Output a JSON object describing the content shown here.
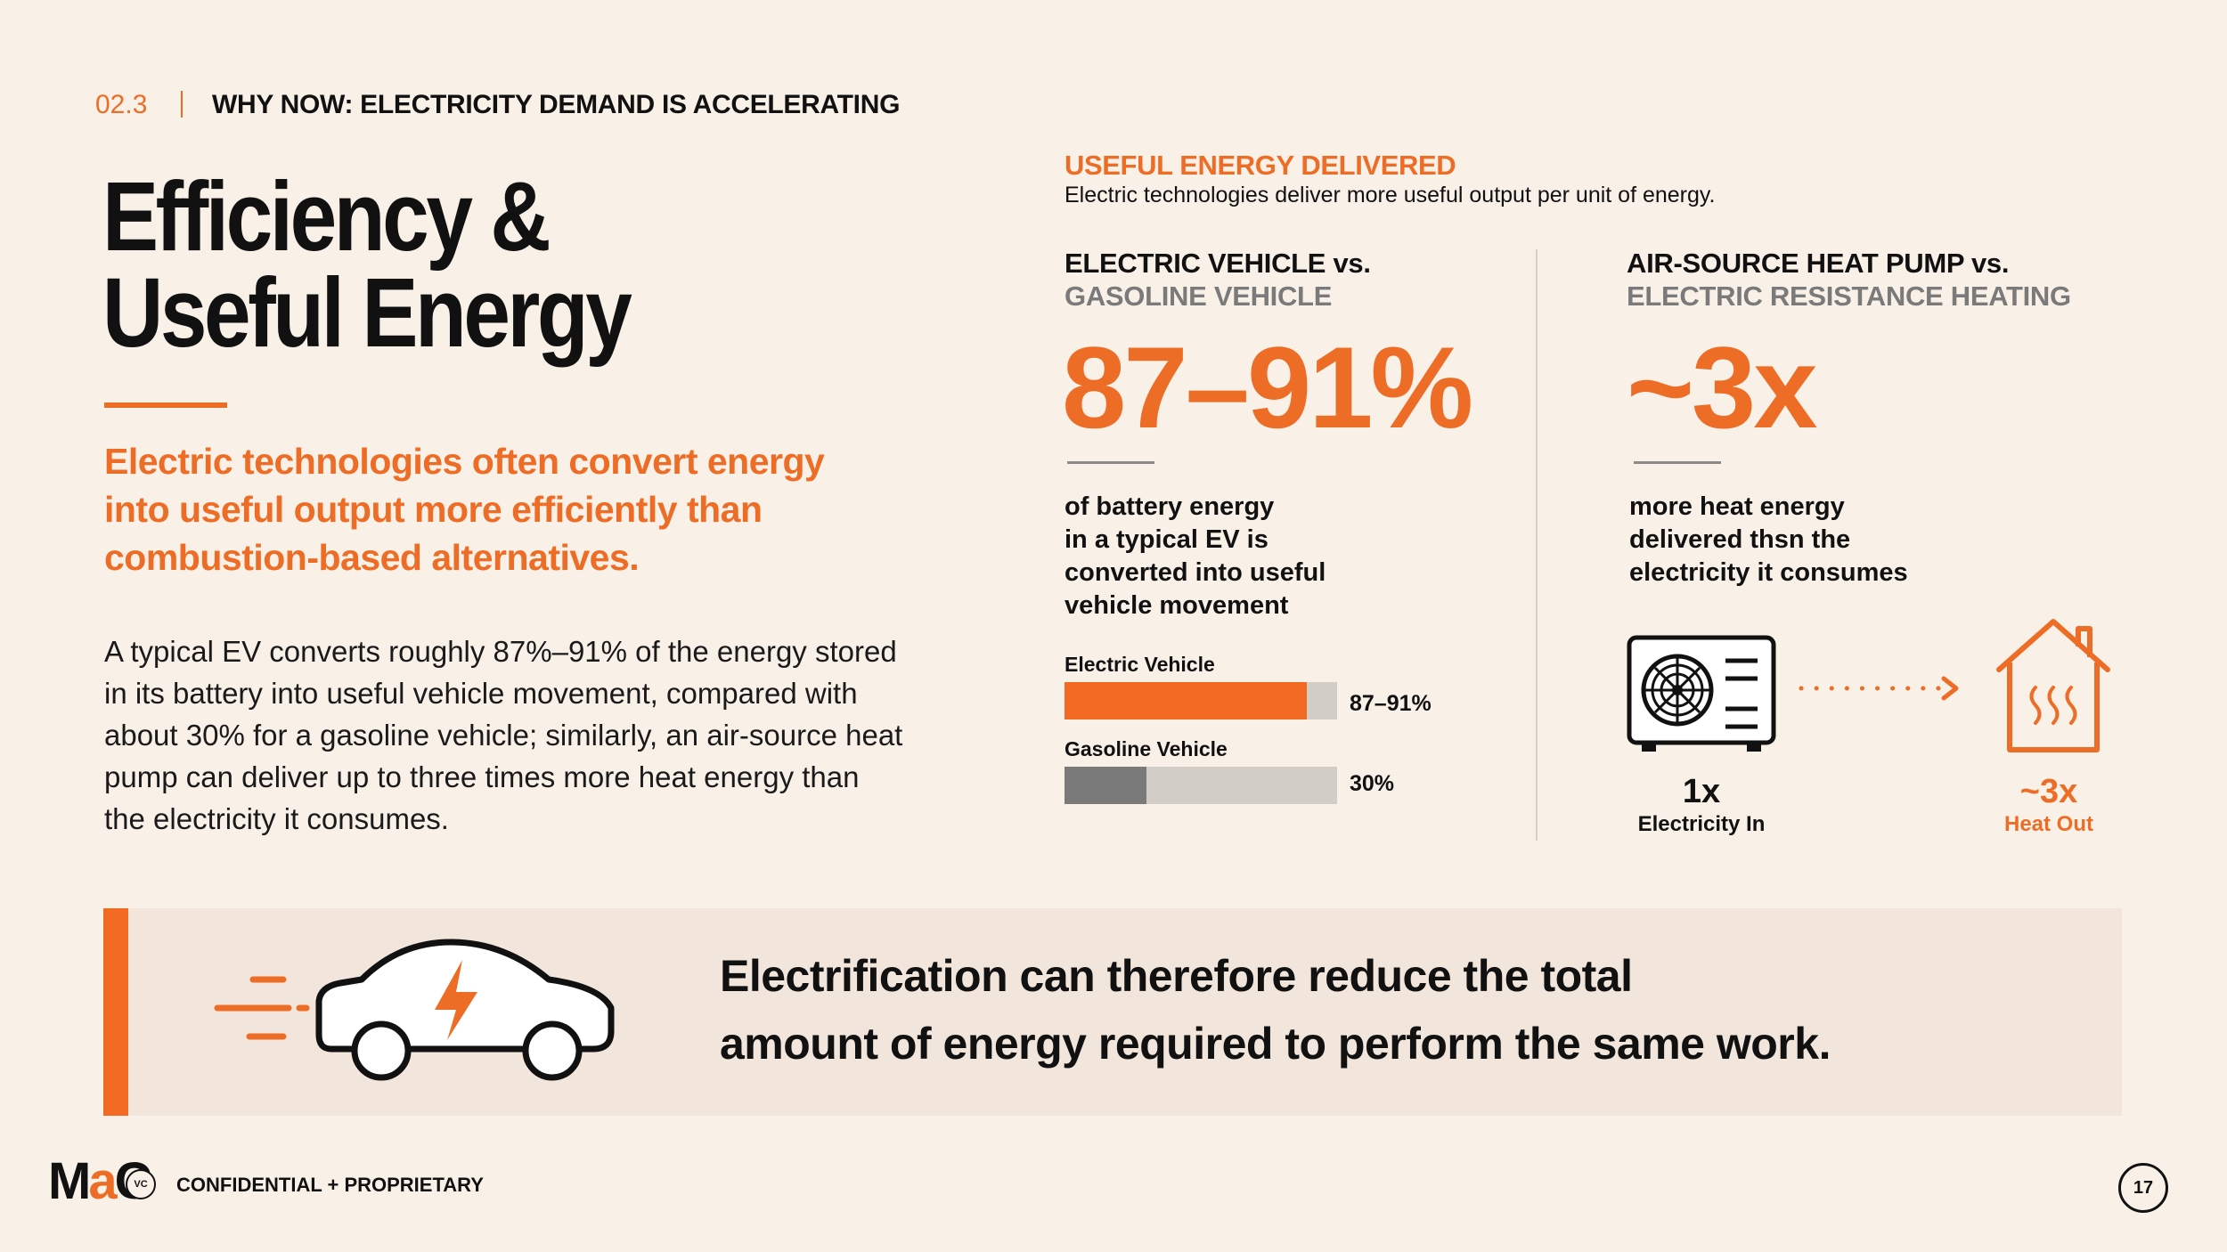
{
  "header": {
    "section_number": "02.3",
    "section_title": "WHY NOW: ELECTRICITY DEMAND IS ACCELERATING"
  },
  "left": {
    "title_line1": "Efficiency &",
    "title_line2": "Useful Energy",
    "lead": "Electric technologies often convert energy into useful output more efficiently than combustion-based alternatives.",
    "body": "A typical EV converts roughly 87%–91% of the energy stored in its battery into useful vehicle movement, compared with about 30% for a gasoline vehicle; similarly, an air-source heat pump can deliver up to three times more heat energy than the electricity it consumes."
  },
  "useful_energy": {
    "title": "USEFUL ENERGY DELIVERED",
    "subtitle": "Electric technologies deliver more useful output per unit of energy."
  },
  "ev_panel": {
    "heading_dark": "ELECTRIC VEHICLE vs.",
    "heading_grey": "GASOLINE VEHICLE",
    "big_stat": "87–91%",
    "description": [
      "of battery energy",
      "in a typical EV is",
      "converted into useful",
      "vehicle movement"
    ]
  },
  "hp_panel": {
    "heading_dark": "AIR-SOURCE HEAT PUMP vs.",
    "heading_grey": "ELECTRIC RESISTANCE HEATING",
    "big_stat": "~3x",
    "description": [
      "more heat energy",
      "delivered thsn the",
      "electricity it consumes"
    ],
    "in_value": "1x",
    "in_label": "Electricity In",
    "out_value": "~3x",
    "out_label": "Heat Out"
  },
  "chart_data": {
    "type": "bar",
    "orientation": "horizontal",
    "categories": [
      "Electric Vehicle",
      "Gasoline Vehicle"
    ],
    "values": [
      89,
      30
    ],
    "value_labels": [
      "87–91%",
      "30%"
    ],
    "xlim": [
      0,
      100
    ],
    "colors": [
      "#f36b22",
      "#7a7a7a"
    ],
    "track_color": "#d2cdc6"
  },
  "callout": {
    "line1": "Electrification can therefore reduce the total",
    "line2": "amount of energy required to perform the same work."
  },
  "footer": {
    "logo_m": "M",
    "logo_a": "a",
    "logo_c": "C",
    "logo_vc": "VC",
    "confidential": "CONFIDENTIAL + PROPRIETARY",
    "page_number": "17"
  },
  "icons": [
    "car-electric-icon",
    "heat-pump-unit-icon",
    "house-heat-icon",
    "dotted-arrow-icon"
  ],
  "colors": {
    "accent": "#ee6d26",
    "background": "#f9f1e8",
    "callout_bg": "#f1e5dc"
  }
}
